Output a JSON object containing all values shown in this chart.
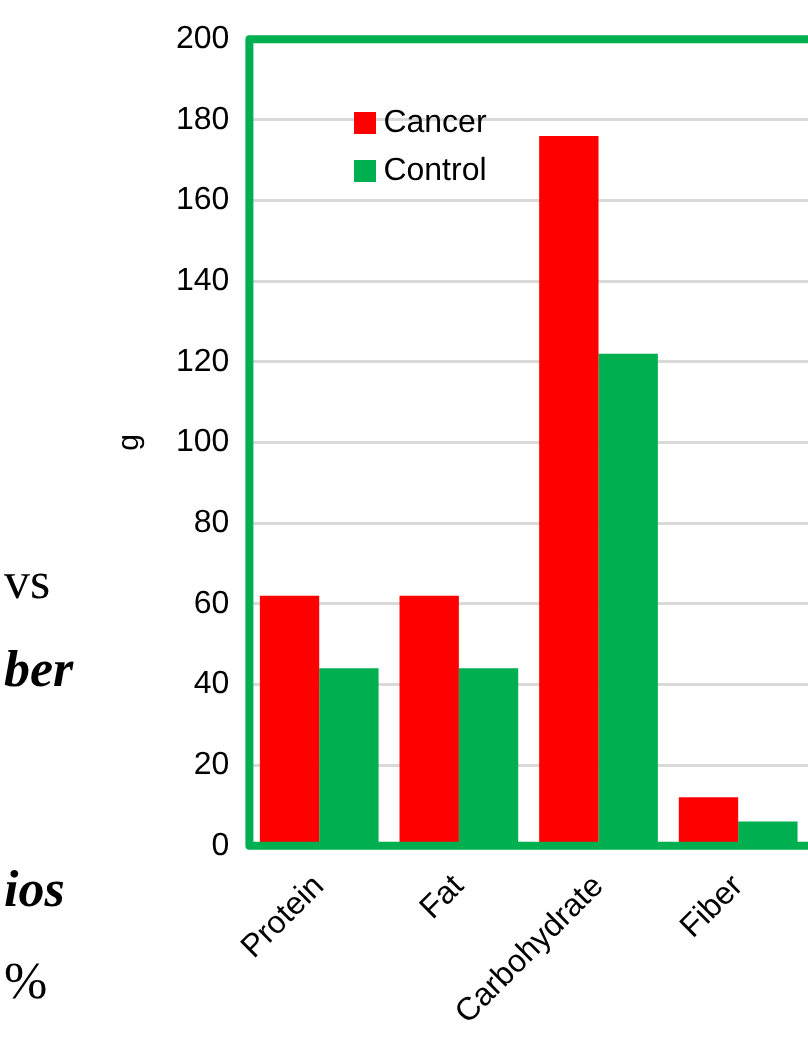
{
  "chart_data": {
    "type": "bar",
    "ylabel": "g",
    "categories": [
      "Protein",
      "Fat",
      "Carbohydrate",
      "Fiber"
    ],
    "series": [
      {
        "name": "Cancer",
        "color": "#ff0000",
        "values": [
          62,
          62,
          176,
          12
        ]
      },
      {
        "name": "Control",
        "color": "#00b050",
        "values": [
          44,
          44,
          122,
          6
        ]
      }
    ],
    "ylim": [
      0,
      200
    ],
    "yticks": [
      0,
      20,
      40,
      60,
      80,
      100,
      120,
      140,
      160,
      180,
      200
    ],
    "grid": "y",
    "legend": "top left",
    "annotations": [
      "vs",
      "ber",
      "ios",
      "%"
    ]
  }
}
